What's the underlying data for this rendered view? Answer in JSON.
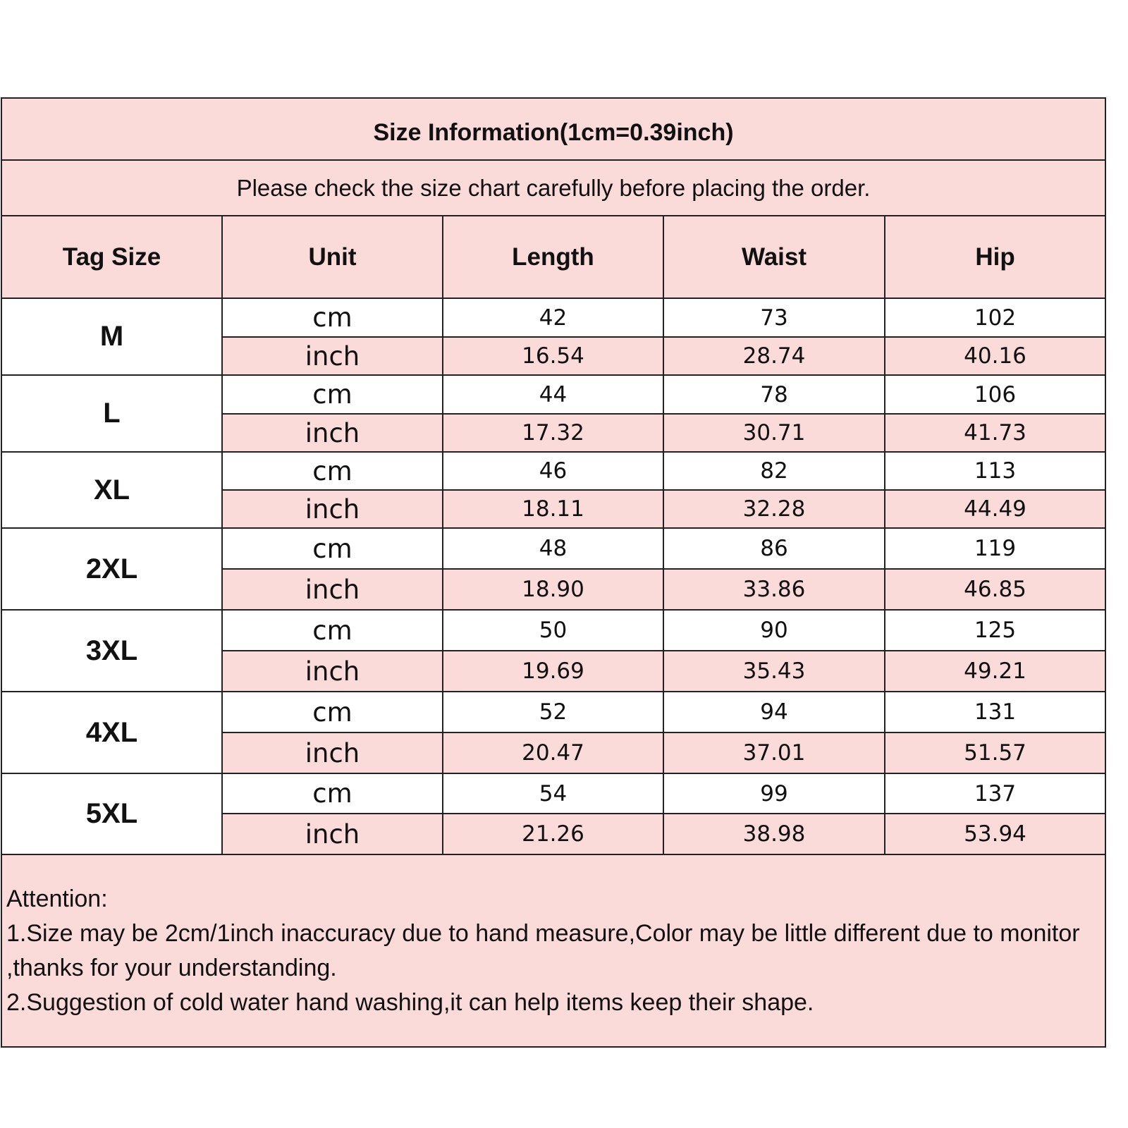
{
  "title": "Size Information(1cm=0.39inch)",
  "subtitle": "Please check the size chart carefully before placing the order.",
  "headers": [
    "Tag Size",
    "Unit",
    "Length",
    "Waist",
    "Hip"
  ],
  "colors": {
    "pink": "#fbdbd9",
    "border": "#222222"
  },
  "rows": [
    {
      "size": "M",
      "cm": {
        "unit": "cm",
        "values": [
          "42",
          "73",
          "102"
        ]
      },
      "inch": {
        "unit": "inch",
        "values": [
          "16.54",
          "28.74",
          "40.16"
        ]
      }
    },
    {
      "size": "L",
      "cm": {
        "unit": "cm",
        "values": [
          "44",
          "78",
          "106"
        ]
      },
      "inch": {
        "unit": "inch",
        "values": [
          "17.32",
          "30.71",
          "41.73"
        ]
      }
    },
    {
      "size": "XL",
      "cm": {
        "unit": "cm",
        "values": [
          "46",
          "82",
          "113"
        ]
      },
      "inch": {
        "unit": "inch",
        "values": [
          "18.11",
          "32.28",
          "44.49"
        ]
      }
    },
    {
      "size": "2XL",
      "cm": {
        "unit": "cm",
        "values": [
          "48",
          "86",
          "119"
        ]
      },
      "inch": {
        "unit": "inch",
        "values": [
          "18.90",
          "33.86",
          "46.85"
        ]
      }
    },
    {
      "size": "3XL",
      "cm": {
        "unit": "cm",
        "values": [
          "50",
          "90",
          "125"
        ]
      },
      "inch": {
        "unit": "inch",
        "values": [
          "19.69",
          "35.43",
          "49.21"
        ]
      }
    },
    {
      "size": "4XL",
      "cm": {
        "unit": "cm",
        "values": [
          "52",
          "94",
          "131"
        ]
      },
      "inch": {
        "unit": "inch",
        "values": [
          "20.47",
          "37.01",
          "51.57"
        ]
      }
    },
    {
      "size": "5XL",
      "cm": {
        "unit": "cm",
        "values": [
          "54",
          "99",
          "137"
        ]
      },
      "inch": {
        "unit": "inch",
        "values": [
          "21.26",
          "38.98",
          "53.94"
        ]
      }
    }
  ],
  "attention": {
    "heading": "Attention:",
    "notes": [
      "1.Size may be 2cm/1inch inaccuracy due to hand measure,Color may be little different due to monitor ,thanks for your understanding.",
      "2.Suggestion of cold water hand washing,it can help items keep their shape."
    ]
  }
}
